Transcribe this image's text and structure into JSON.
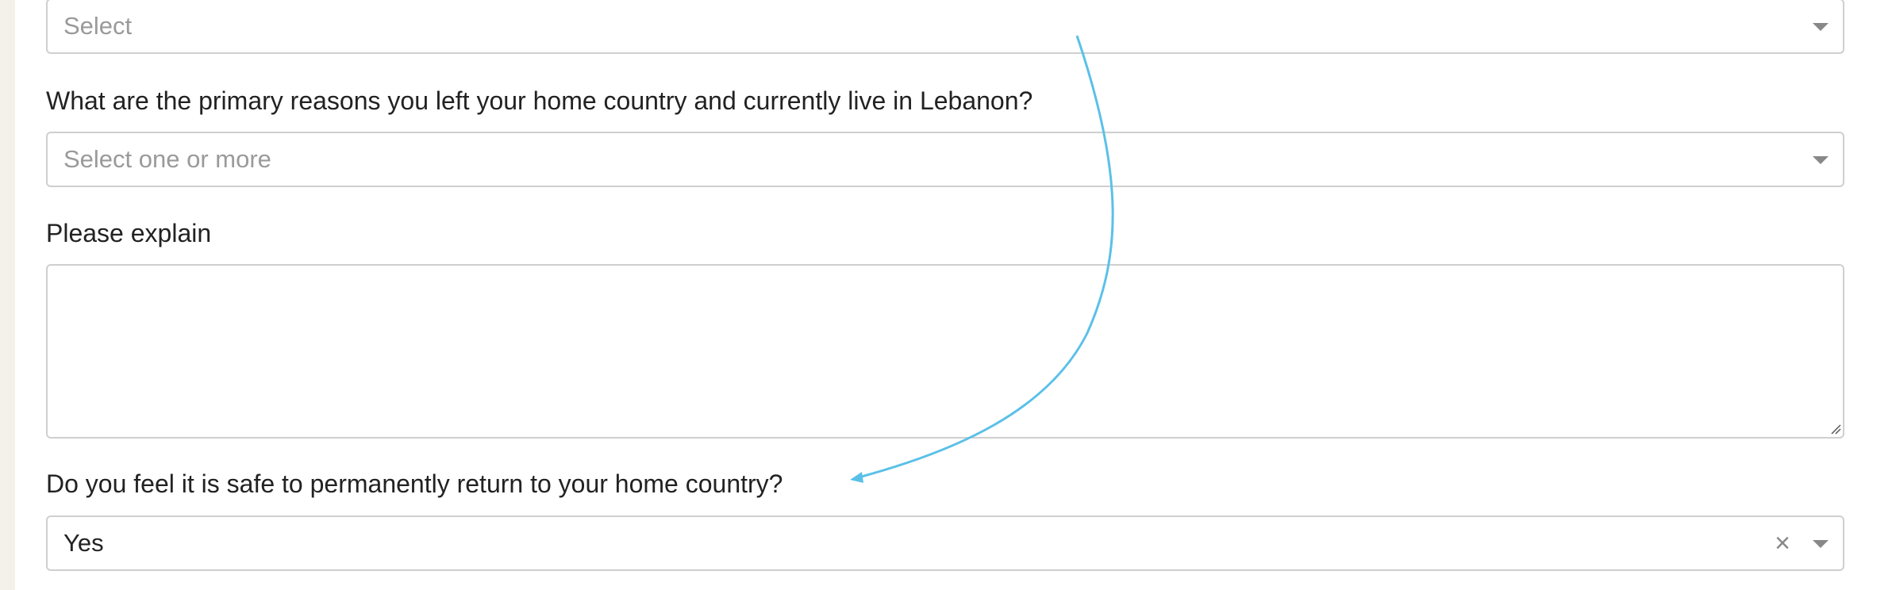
{
  "form": {
    "first_select": {
      "placeholder": "Select"
    },
    "reasons": {
      "question": "What are the primary reasons you left your home country and currently live in Lebanon?",
      "placeholder": "Select one or more"
    },
    "explain": {
      "label": "Please explain",
      "value": ""
    },
    "safe_return": {
      "question": "Do you feel it is safe to permanently return to your home country?",
      "value": "Yes",
      "clear_glyph": "×"
    }
  },
  "annotation": {
    "color": "#5bc0e8"
  }
}
